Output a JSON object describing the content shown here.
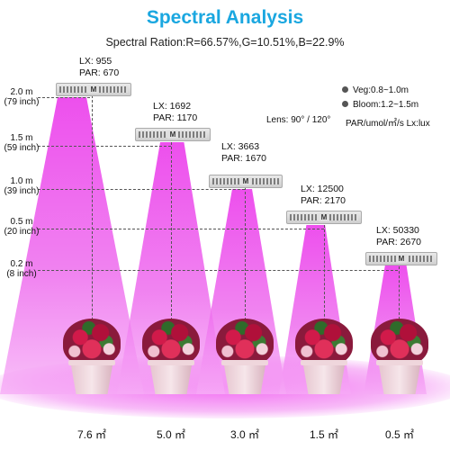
{
  "title": "Spectral Analysis",
  "ratio": "Spectral Ration:R=66.57%,G=10.51%,B=22.9%",
  "legend": {
    "veg": "Veg:0.8~1.0m",
    "bloom": "Bloom:1.2~1.5m",
    "lens": "Lens: 90° / 120°",
    "units": "PAR/umol/㎡/s   Lx:lux"
  },
  "heights": [
    {
      "m": "2.0 m",
      "inch": "(79 inch)"
    },
    {
      "m": "1.5 m",
      "inch": "(59 inch)"
    },
    {
      "m": "1.0 m",
      "inch": "(39 inch)"
    },
    {
      "m": "0.5 m",
      "inch": "(20 inch)"
    },
    {
      "m": "0.2 m",
      "inch": "(8 inch)"
    }
  ],
  "lamps": [
    {
      "lx": "LX: 955",
      "par": "PAR: 670",
      "area": "7.6 ㎡"
    },
    {
      "lx": "LX: 1692",
      "par": "PAR: 1170",
      "area": "5.0 ㎡"
    },
    {
      "lx": "LX: 3663",
      "par": "PAR: 1670",
      "area": "3.0 ㎡"
    },
    {
      "lx": "LX: 12500",
      "par": "PAR: 2170",
      "area": "1.5 ㎡"
    },
    {
      "lx": "LX: 50330",
      "par": "PAR: 2670",
      "area": "0.5 ㎡"
    }
  ],
  "colors": {
    "title": "#1aa7e0",
    "beam": "#ec46ec"
  }
}
